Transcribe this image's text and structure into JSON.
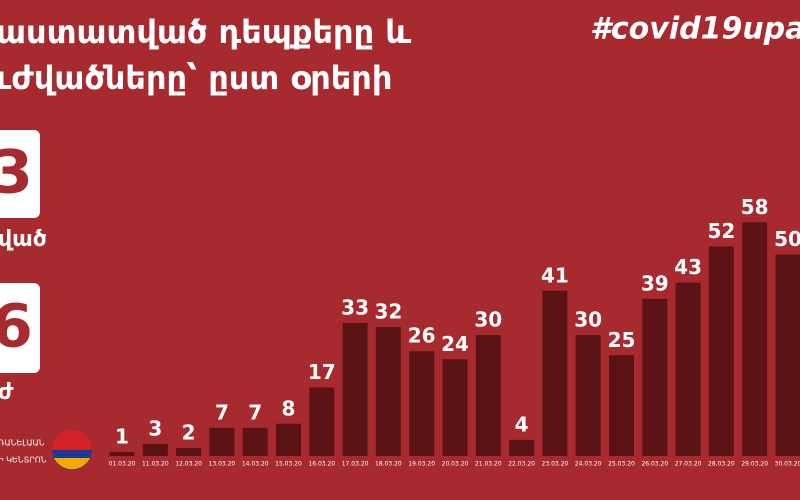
{
  "chart_data": {
    "type": "bar",
    "title": [
      "աստատված դեպքերը և",
      "ւժվածները՝ ըստ օրերի"
    ],
    "hashtag": "#covid19upa",
    "stats": [
      {
        "number": "3",
        "label": "ված"
      },
      {
        "number": "6",
        "label": "ժ"
      }
    ],
    "logo_text": [
      "ՌԱՆԵԼԱԱՆ",
      "Ի ԿԵՆՏՐՈՆ"
    ],
    "categories": [
      "01.03.20",
      "11.03.20",
      "12.03.20",
      "13.03.20",
      "14.03.20",
      "15.03.20",
      "16.03.20",
      "17.03.20",
      "18.03.20",
      "19.03.20",
      "20.03.20",
      "21.03.20",
      "22.03.20",
      "23.03.20",
      "24.03.20",
      "25.03.20",
      "26.03.20",
      "27.03.20",
      "28.03.20",
      "29.03.20",
      "30.03.20"
    ],
    "values": [
      1,
      3,
      2,
      7,
      7,
      8,
      17,
      33,
      32,
      26,
      24,
      30,
      4,
      41,
      30,
      25,
      39,
      43,
      52,
      58,
      50
    ],
    "color": "#5c1315"
  }
}
